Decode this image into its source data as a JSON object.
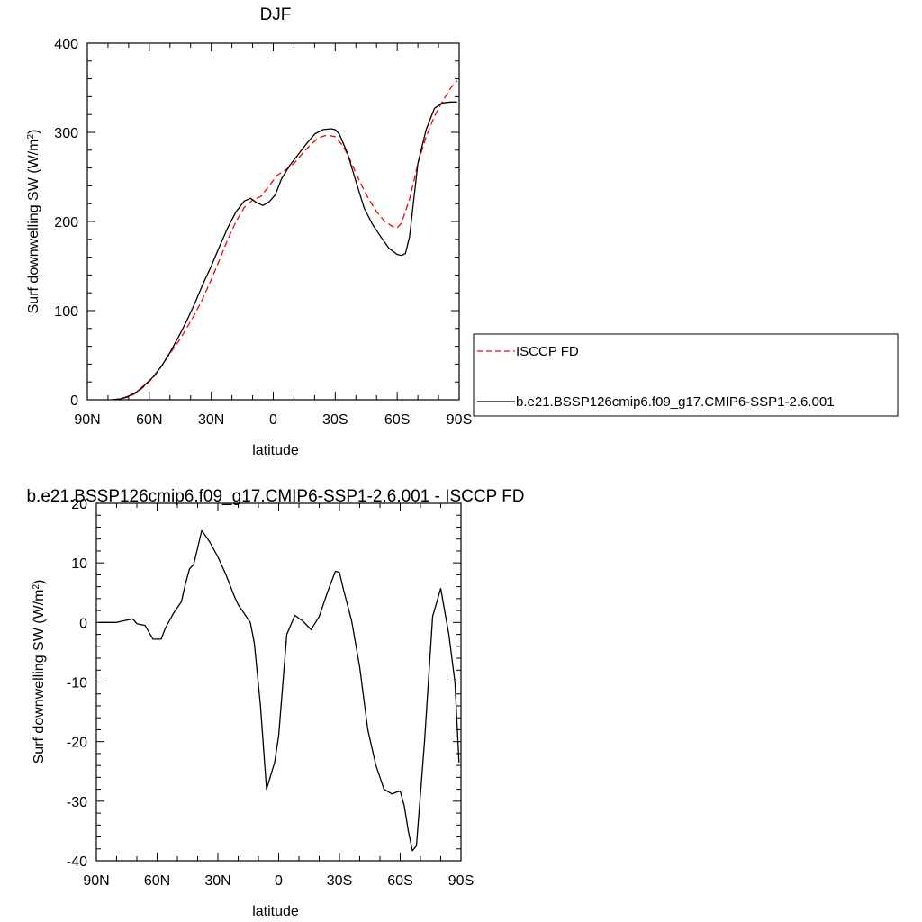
{
  "chart_data": [
    {
      "type": "line",
      "title": "DJF",
      "xlabel": "latitude",
      "ylabel": "Surf downwelling SW (W/m",
      "ylabel_sup": "2",
      "ylabel_end": ")",
      "xlim": [
        -90,
        90
      ],
      "ylim": [
        0,
        400
      ],
      "xticks": [
        {
          "value": -90,
          "label": "90N"
        },
        {
          "value": -60,
          "label": "60N"
        },
        {
          "value": -30,
          "label": "30N"
        },
        {
          "value": 0,
          "label": "0"
        },
        {
          "value": 30,
          "label": "30S"
        },
        {
          "value": 60,
          "label": "60S"
        },
        {
          "value": 90,
          "label": "90S"
        }
      ],
      "yticks": [
        {
          "value": 0,
          "label": "0"
        },
        {
          "value": 100,
          "label": "100"
        },
        {
          "value": 200,
          "label": "200"
        },
        {
          "value": 300,
          "label": "300"
        },
        {
          "value": 400,
          "label": "400"
        }
      ],
      "grid": false,
      "legend": {
        "placement": "right",
        "entries": [
          {
            "label": "ISCCP FD",
            "color": "#ff0000",
            "style": "dashed"
          },
          {
            "label": "b.e21.BSSP126cmip6.f09_g17.CMIP6-SSP1-2.6.001",
            "color": "#000000",
            "style": "solid"
          }
        ]
      },
      "series": [
        {
          "name": "ISCCP FD",
          "color": "#ff0000",
          "style": "dashed",
          "x": [
            -78,
            -74,
            -70,
            -66,
            -62,
            -58,
            -54,
            -50,
            -46,
            -42,
            -38,
            -34,
            -30,
            -26,
            -22,
            -18,
            -14,
            -10,
            -6,
            -2,
            2,
            6,
            10,
            14,
            18,
            22,
            26,
            30,
            34,
            38,
            42,
            46,
            50,
            54,
            58,
            60,
            62,
            66,
            70,
            74,
            78,
            82,
            86,
            89
          ],
          "y": [
            0,
            1,
            3,
            8,
            16,
            25,
            38,
            52,
            65,
            80,
            96,
            114,
            135,
            157,
            180,
            200,
            216,
            224,
            228,
            240,
            252,
            258,
            265,
            276,
            286,
            294,
            297,
            295,
            284,
            265,
            244,
            226,
            211,
            200,
            194,
            193,
            198,
            225,
            265,
            295,
            318,
            335,
            350,
            358
          ]
        },
        {
          "name": "b.e21.BSSP126cmip6.f09_g17.CMIP6-SSP1-2.6.001",
          "color": "#000000",
          "style": "solid",
          "x": [
            -78,
            -74,
            -70,
            -66,
            -62,
            -58,
            -54,
            -50,
            -46,
            -42,
            -38,
            -34,
            -30,
            -26,
            -22,
            -18,
            -14,
            -11,
            -8,
            -5,
            -2,
            1,
            4,
            8,
            12,
            16,
            20,
            24,
            28,
            30,
            32,
            36,
            40,
            44,
            48,
            52,
            56,
            60,
            62,
            64,
            66,
            70,
            74,
            78,
            82,
            86,
            89
          ],
          "y": [
            0,
            1,
            4,
            9,
            17,
            26,
            38,
            53,
            70,
            88,
            108,
            130,
            150,
            172,
            193,
            211,
            223,
            226,
            221,
            218,
            222,
            230,
            248,
            263,
            275,
            287,
            298,
            303,
            304,
            303,
            298,
            276,
            245,
            215,
            197,
            183,
            170,
            163,
            162,
            164,
            183,
            265,
            303,
            327,
            333,
            334,
            334
          ]
        }
      ]
    },
    {
      "type": "line",
      "title": "b.e21.BSSP126cmip6.f09_g17.CMIP6-SSP1-2.6.001 - ISCCP FD",
      "xlabel": "latitude",
      "ylabel": "Surf downwelling SW (W/m",
      "ylabel_sup": "2",
      "ylabel_end": ")",
      "xlim": [
        -90,
        90
      ],
      "ylim": [
        -40,
        20
      ],
      "xticks": [
        {
          "value": -90,
          "label": "90N"
        },
        {
          "value": -60,
          "label": "60N"
        },
        {
          "value": -30,
          "label": "30N"
        },
        {
          "value": 0,
          "label": "0"
        },
        {
          "value": 30,
          "label": "30S"
        },
        {
          "value": 60,
          "label": "60S"
        },
        {
          "value": 90,
          "label": "90S"
        }
      ],
      "yticks": [
        {
          "value": -40,
          "label": "-40"
        },
        {
          "value": -30,
          "label": "-30"
        },
        {
          "value": -20,
          "label": "-20"
        },
        {
          "value": -10,
          "label": "-10"
        },
        {
          "value": 0,
          "label": "0"
        },
        {
          "value": 10,
          "label": "10"
        },
        {
          "value": 20,
          "label": "20"
        }
      ],
      "grid": false,
      "series": [
        {
          "name": "",
          "color": "#000000",
          "style": "solid",
          "x": [
            -89,
            -84,
            -80,
            -76,
            -72,
            -70,
            -66,
            -62,
            -58,
            -56,
            -52,
            -48,
            -46,
            -44,
            -42,
            -40,
            -38,
            -36,
            -34,
            -30,
            -26,
            -22,
            -20,
            -18,
            -16,
            -14,
            -12,
            -9,
            -6,
            -2,
            0,
            4,
            8,
            12,
            16,
            20,
            24,
            28,
            30,
            32,
            36,
            40,
            44,
            48,
            52,
            56,
            58,
            60,
            62,
            64,
            66,
            68,
            72,
            76,
            80,
            84,
            87,
            89
          ],
          "y": [
            0,
            0,
            0,
            0.3,
            0.6,
            -0.2,
            -0.5,
            -2.8,
            -2.8,
            -1,
            1.5,
            3.5,
            6.5,
            9,
            9.7,
            12.5,
            15.4,
            14.5,
            13.5,
            11,
            8,
            4.5,
            3,
            2,
            1,
            0,
            -3.5,
            -14,
            -28,
            -23.5,
            -19,
            -2,
            1.2,
            0.2,
            -1.2,
            1,
            5,
            8.6,
            8.4,
            5.5,
            0.3,
            -7.5,
            -18,
            -24,
            -28,
            -28.8,
            -28.5,
            -28.3,
            -30.8,
            -35,
            -38.3,
            -37.5,
            -20,
            1,
            5.7,
            -2,
            -10,
            -23.5
          ]
        }
      ]
    }
  ]
}
